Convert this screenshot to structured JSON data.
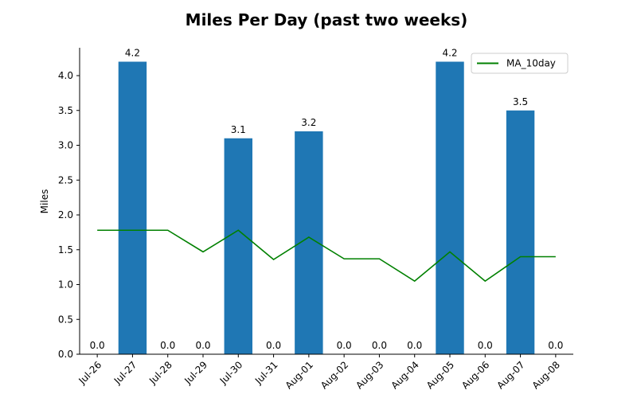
{
  "chart_data": {
    "type": "bar",
    "title": "Miles Per Day (past two weeks)",
    "xlabel": "",
    "ylabel": "Miles",
    "ylim": [
      0,
      4.4
    ],
    "yticks": [
      "0.0",
      "0.5",
      "1.0",
      "1.5",
      "2.0",
      "2.5",
      "3.0",
      "3.5",
      "4.0"
    ],
    "categories": [
      "Jul-26",
      "Jul-27",
      "Jul-28",
      "Jul-29",
      "Jul-30",
      "Jul-31",
      "Aug-01",
      "Aug-02",
      "Aug-03",
      "Aug-04",
      "Aug-05",
      "Aug-06",
      "Aug-07",
      "Aug-08"
    ],
    "values": [
      0.0,
      4.2,
      0.0,
      0.0,
      3.1,
      0.0,
      3.2,
      0.0,
      0.0,
      0.0,
      4.2,
      0.0,
      3.5,
      0.0
    ],
    "value_labels": [
      "0.0",
      "4.2",
      "0.0",
      "0.0",
      "3.1",
      "0.0",
      "3.2",
      "0.0",
      "0.0",
      "0.0",
      "4.2",
      "0.0",
      "3.5",
      "0.0"
    ],
    "bar_color": "#1f77b4",
    "line_series": {
      "name": "MA_10day",
      "type": "line",
      "color": "#008000",
      "values": [
        1.78,
        1.78,
        1.78,
        1.47,
        1.78,
        1.36,
        1.68,
        1.37,
        1.37,
        1.05,
        1.47,
        1.05,
        1.4,
        1.4
      ]
    },
    "legend": {
      "position": "top-right",
      "entries": [
        "MA_10day"
      ]
    },
    "grid": false,
    "x_tick_rotation": "45"
  }
}
